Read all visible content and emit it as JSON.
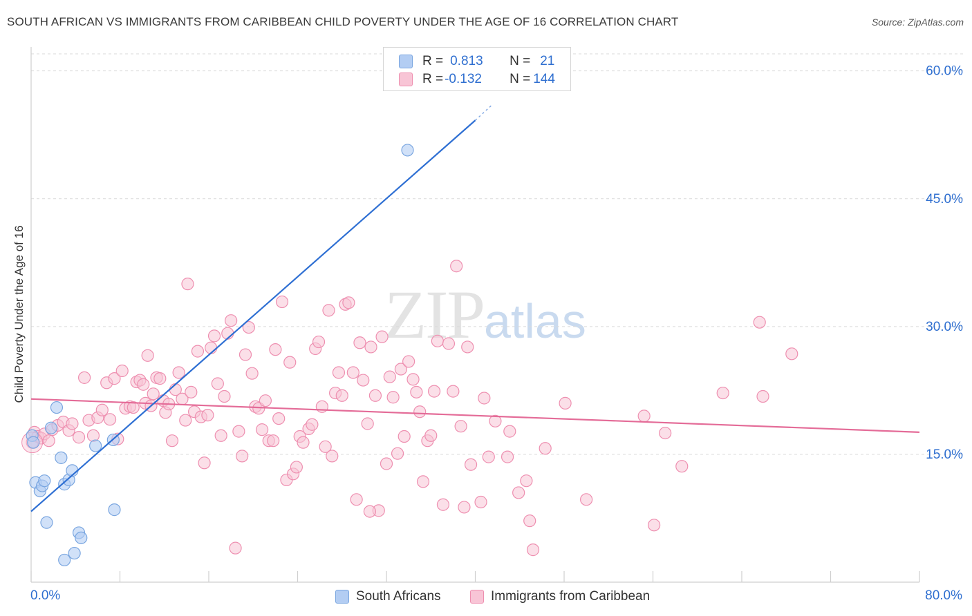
{
  "header": {
    "title": "SOUTH AFRICAN VS IMMIGRANTS FROM CARIBBEAN CHILD POVERTY UNDER THE AGE OF 16 CORRELATION CHART",
    "source_label": "Source: ",
    "source_value": "ZipAtlas.com"
  },
  "watermark": {
    "zip": "ZIP",
    "atlas": "atlas"
  },
  "legend": {
    "rows": [
      {
        "r_label": "R = ",
        "r_value": "0.813",
        "n_label": "N = ",
        "n_value": "21"
      },
      {
        "r_label": "R = ",
        "r_value": "-0.132",
        "n_label": "N = ",
        "n_value": "144"
      }
    ]
  },
  "colors": {
    "blue_fill": "#b3cdf3",
    "blue_stroke": "#7aa6e0",
    "blue_line": "#2e6fd3",
    "pink_fill": "#f8c5d6",
    "pink_stroke": "#ee8fb0",
    "pink_line": "#e46c98",
    "grid": "#d9d9d9",
    "axis_text": "#2f6fd0"
  },
  "chart_data": {
    "type": "scatter",
    "title": "SOUTH AFRICAN VS IMMIGRANTS FROM CARIBBEAN CHILD POVERTY UNDER THE AGE OF 16 CORRELATION CHART",
    "xlabel": "",
    "ylabel": "Child Poverty Under the Age of 16",
    "xlim": [
      0,
      80
    ],
    "ylim": [
      0,
      62
    ],
    "x_tick_labels": [
      "0.0%",
      "80.0%"
    ],
    "y_ticks": [
      15,
      30,
      45,
      60
    ],
    "y_tick_labels": [
      "15.0%",
      "30.0%",
      "45.0%",
      "60.0%"
    ],
    "grid": true,
    "legend_position": "bottom-center",
    "series": [
      {
        "name": "South Africans",
        "R": 0.813,
        "N": 21,
        "trend": {
          "x": [
            0,
            40
          ],
          "y": [
            8.3,
            54.2
          ],
          "dashed_to": [
            41.5,
            56.0
          ]
        },
        "points": [
          [
            0.4,
            11.7
          ],
          [
            0.8,
            10.7
          ],
          [
            1.0,
            11.3
          ],
          [
            1.2,
            11.9
          ],
          [
            1.4,
            7.0
          ],
          [
            1.8,
            18.1
          ],
          [
            2.3,
            20.5
          ],
          [
            2.7,
            14.6
          ],
          [
            3.0,
            11.5
          ],
          [
            3.4,
            12.0
          ],
          [
            3.7,
            13.1
          ],
          [
            4.3,
            5.8
          ],
          [
            4.5,
            5.2
          ],
          [
            3.0,
            2.6
          ],
          [
            3.9,
            3.4
          ],
          [
            5.8,
            16.0
          ],
          [
            7.4,
            16.7
          ],
          [
            7.5,
            8.5
          ],
          [
            33.9,
            50.7
          ],
          [
            0.1,
            17.2
          ],
          [
            0.2,
            16.4
          ]
        ]
      },
      {
        "name": "Immigrants from Caribbean",
        "R": -0.132,
        "N": 144,
        "trend": {
          "x": [
            0,
            80
          ],
          "y": [
            21.5,
            17.6
          ]
        },
        "points": [
          [
            0.1,
            16.4
          ],
          [
            0.3,
            17.6
          ],
          [
            0.6,
            17.1
          ],
          [
            0.9,
            16.9
          ],
          [
            1.2,
            17.4
          ],
          [
            1.6,
            16.6
          ],
          [
            1.9,
            17.9
          ],
          [
            2.4,
            18.4
          ],
          [
            2.9,
            18.8
          ],
          [
            3.4,
            17.8
          ],
          [
            3.7,
            18.6
          ],
          [
            4.3,
            17.0
          ],
          [
            4.8,
            24.0
          ],
          [
            5.2,
            19.0
          ],
          [
            5.6,
            17.2
          ],
          [
            6.0,
            19.3
          ],
          [
            6.4,
            20.2
          ],
          [
            6.8,
            23.4
          ],
          [
            7.1,
            19.1
          ],
          [
            7.5,
            23.9
          ],
          [
            7.8,
            16.8
          ],
          [
            8.2,
            24.8
          ],
          [
            8.5,
            20.4
          ],
          [
            8.9,
            20.6
          ],
          [
            9.2,
            20.5
          ],
          [
            9.5,
            23.5
          ],
          [
            9.8,
            23.7
          ],
          [
            10.1,
            23.2
          ],
          [
            10.3,
            21.0
          ],
          [
            10.5,
            26.6
          ],
          [
            10.8,
            20.7
          ],
          [
            11.0,
            22.1
          ],
          [
            11.3,
            24.0
          ],
          [
            11.6,
            23.9
          ],
          [
            11.9,
            21.3
          ],
          [
            12.1,
            19.9
          ],
          [
            12.4,
            20.9
          ],
          [
            12.7,
            16.6
          ],
          [
            13.0,
            22.6
          ],
          [
            13.3,
            24.6
          ],
          [
            13.6,
            21.5
          ],
          [
            13.9,
            19.0
          ],
          [
            14.1,
            35.0
          ],
          [
            14.4,
            22.3
          ],
          [
            14.7,
            20.0
          ],
          [
            15.0,
            27.1
          ],
          [
            15.3,
            19.4
          ],
          [
            15.6,
            14.0
          ],
          [
            15.9,
            19.6
          ],
          [
            16.2,
            27.5
          ],
          [
            16.5,
            28.9
          ],
          [
            16.8,
            23.3
          ],
          [
            17.1,
            17.2
          ],
          [
            17.4,
            21.8
          ],
          [
            17.7,
            29.2
          ],
          [
            18.0,
            30.7
          ],
          [
            18.4,
            4.0
          ],
          [
            18.7,
            17.7
          ],
          [
            19.0,
            14.8
          ],
          [
            19.3,
            26.7
          ],
          [
            19.6,
            29.9
          ],
          [
            19.9,
            24.5
          ],
          [
            20.2,
            20.6
          ],
          [
            20.5,
            20.4
          ],
          [
            20.8,
            17.9
          ],
          [
            21.1,
            21.3
          ],
          [
            21.4,
            16.6
          ],
          [
            22.0,
            27.3
          ],
          [
            22.3,
            19.2
          ],
          [
            22.6,
            32.9
          ],
          [
            23.0,
            12.0
          ],
          [
            23.3,
            25.8
          ],
          [
            23.6,
            12.7
          ],
          [
            23.9,
            13.5
          ],
          [
            24.2,
            17.1
          ],
          [
            24.5,
            16.4
          ],
          [
            25.0,
            18.0
          ],
          [
            25.3,
            18.5
          ],
          [
            25.6,
            27.4
          ],
          [
            25.9,
            28.2
          ],
          [
            26.2,
            20.6
          ],
          [
            26.5,
            15.9
          ],
          [
            26.8,
            31.9
          ],
          [
            27.1,
            14.8
          ],
          [
            27.4,
            22.2
          ],
          [
            27.7,
            24.6
          ],
          [
            28.0,
            21.9
          ],
          [
            28.3,
            32.6
          ],
          [
            28.6,
            32.8
          ],
          [
            29.0,
            24.6
          ],
          [
            29.3,
            9.7
          ],
          [
            29.6,
            28.1
          ],
          [
            29.9,
            23.7
          ],
          [
            30.3,
            18.6
          ],
          [
            30.6,
            27.6
          ],
          [
            31.0,
            21.9
          ],
          [
            31.3,
            8.4
          ],
          [
            31.6,
            28.8
          ],
          [
            32.0,
            13.9
          ],
          [
            32.3,
            24.1
          ],
          [
            32.6,
            21.7
          ],
          [
            33.0,
            15.1
          ],
          [
            33.3,
            25.0
          ],
          [
            33.6,
            17.1
          ],
          [
            34.0,
            25.9
          ],
          [
            34.4,
            23.8
          ],
          [
            34.7,
            22.3
          ],
          [
            35.0,
            20.0
          ],
          [
            35.3,
            11.8
          ],
          [
            35.7,
            16.6
          ],
          [
            36.0,
            17.2
          ],
          [
            36.3,
            22.4
          ],
          [
            36.6,
            28.3
          ],
          [
            37.1,
            9.1
          ],
          [
            37.6,
            28.0
          ],
          [
            38.0,
            22.4
          ],
          [
            38.3,
            37.1
          ],
          [
            38.7,
            18.3
          ],
          [
            39.0,
            8.8
          ],
          [
            39.3,
            27.6
          ],
          [
            39.6,
            13.8
          ],
          [
            40.5,
            9.4
          ],
          [
            40.8,
            21.6
          ],
          [
            41.2,
            14.7
          ],
          [
            41.8,
            18.9
          ],
          [
            42.9,
            14.7
          ],
          [
            43.1,
            17.7
          ],
          [
            43.9,
            10.5
          ],
          [
            44.6,
            11.9
          ],
          [
            44.9,
            7.2
          ],
          [
            45.2,
            3.8
          ],
          [
            46.3,
            15.7
          ],
          [
            48.1,
            21.0
          ],
          [
            50.0,
            9.7
          ],
          [
            55.2,
            19.5
          ],
          [
            56.1,
            6.7
          ],
          [
            57.1,
            17.5
          ],
          [
            58.6,
            13.6
          ],
          [
            62.3,
            22.2
          ],
          [
            65.6,
            30.5
          ],
          [
            65.9,
            21.8
          ],
          [
            68.5,
            26.8
          ],
          [
            30.5,
            8.3
          ],
          [
            21.8,
            16.6
          ]
        ]
      }
    ]
  },
  "axes": {
    "y_label": "Child Poverty Under the Age of 16",
    "x_min_label": "0.0%",
    "x_max_label": "80.0%"
  },
  "bottom_legend": {
    "items": [
      {
        "label": "South Africans"
      },
      {
        "label": "Immigrants from Caribbean"
      }
    ]
  }
}
